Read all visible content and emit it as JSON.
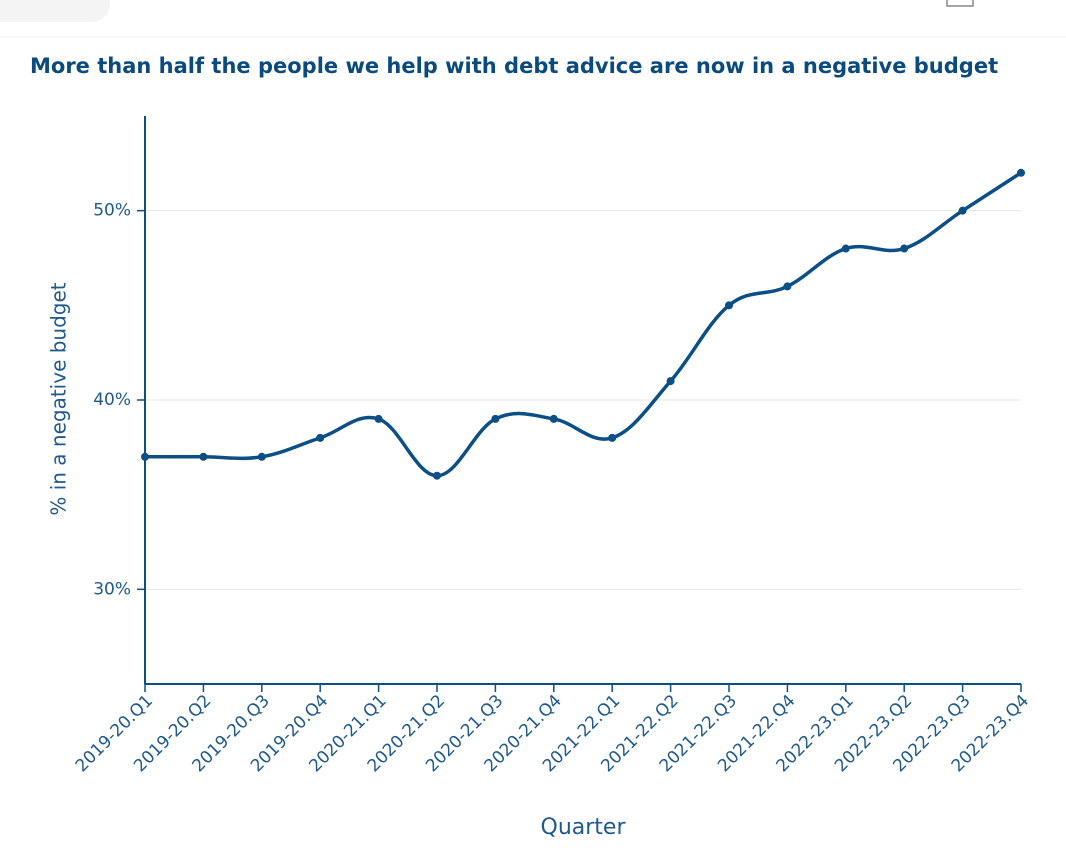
{
  "chart_data": {
    "type": "line",
    "title": "More than half the people we help with debt advice are now in a negative budget",
    "x_label": "Quarter",
    "y_label": "% in a negative budget",
    "categories": [
      "2019-20.Q1",
      "2019-20.Q2",
      "2019-20.Q3",
      "2019-20.Q4",
      "2020-21.Q1",
      "2020-21.Q2",
      "2020-21.Q3",
      "2020-21.Q4",
      "2021-22.Q1",
      "2021-22.Q2",
      "2021-22.Q3",
      "2021-22.Q4",
      "2022-23.Q1",
      "2022-23.Q2",
      "2022-23.Q3",
      "2022-23.Q4"
    ],
    "values": [
      37,
      37,
      37,
      38,
      39,
      36,
      39,
      39,
      38,
      41,
      45,
      46,
      48,
      48,
      50,
      52
    ],
    "color": "#0b4f86",
    "ylim": [
      25,
      55
    ],
    "yticks": [
      {
        "value": 30,
        "label": "30%"
      },
      {
        "value": 40,
        "label": "40%"
      },
      {
        "value": 50,
        "label": "50%"
      }
    ],
    "grid": true
  }
}
